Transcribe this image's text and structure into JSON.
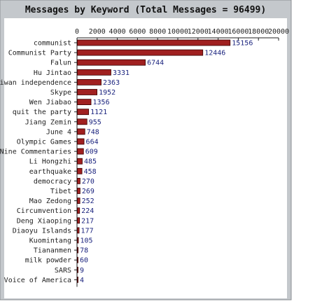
{
  "colors": {
    "frame_bg": "#c4c8cc",
    "plot_bg": "#ffffff",
    "bar_fill": "#a02020",
    "bar_edge": "#3a0000",
    "value_text": "#1a237e"
  },
  "chart_data": {
    "type": "bar",
    "orientation": "horizontal",
    "title": "Messages by Keyword (Total Messages = 96499)",
    "xlabel": "",
    "ylabel": "",
    "xlim": [
      0,
      20000
    ],
    "xticks": [
      "0",
      "2000",
      "4000",
      "6000",
      "8000",
      "10000",
      "12000",
      "14000",
      "16000",
      "18000",
      "20000"
    ],
    "grid": false,
    "legend": "none",
    "categories": [
      "communist",
      "Communist Party",
      "Falun",
      "Hu Jintao",
      "Taiwan independence",
      "Skype",
      "Wen Jiabao",
      "quit the party",
      "Jiang Zemin",
      "June 4",
      "Olympic Games",
      "Nine Commentaries",
      "Li Hongzhi",
      "earthquake",
      "democracy",
      "Tibet",
      "Mao Zedong",
      "Circumvention",
      "Deng Xiaoping",
      "Diaoyu Islands",
      "Kuomintang",
      "Tiananmen",
      "milk powder",
      "SARS",
      "Voice of America"
    ],
    "values": [
      15156,
      12446,
      6744,
      3331,
      2363,
      1952,
      1356,
      1121,
      955,
      748,
      664,
      609,
      485,
      458,
      270,
      269,
      252,
      224,
      217,
      177,
      105,
      78,
      60,
      9,
      4
    ]
  }
}
